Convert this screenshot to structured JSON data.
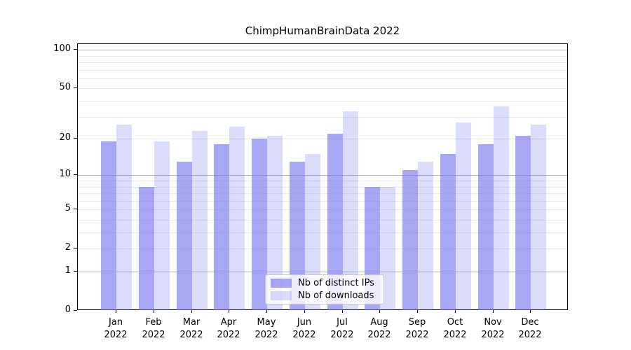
{
  "title": "ChimpHumanBrainData 2022",
  "colors": {
    "bar_ips": "rgba(120,120,240,0.65)",
    "bar_downloads": "rgba(120,120,240,0.26)",
    "bar_ips_hex_on_white": "#a9a9f3",
    "bar_downloads_hex_on_white": "#dcdcfa",
    "grid_major": "#b0b0b0",
    "grid_minor": "#e9e9e9",
    "spine": "#000000",
    "legend_border": "#c8c8c8"
  },
  "legend": {
    "position": "lower center",
    "items": [
      {
        "label": "Nb of distinct IPs"
      },
      {
        "label": "Nb of downloads"
      }
    ]
  },
  "chart_data": {
    "type": "bar",
    "title": "ChimpHumanBrainData 2022",
    "categories": [
      "Jan 2022",
      "Feb 2022",
      "Mar 2022",
      "Apr 2022",
      "May 2022",
      "Jun 2022",
      "Jul 2022",
      "Aug 2022",
      "Sep 2022",
      "Oct 2022",
      "Nov 2022",
      "Dec 2022"
    ],
    "series": [
      {
        "name": "Nb of distinct IPs",
        "values": [
          19,
          8,
          13,
          18,
          20,
          13,
          22,
          8,
          11,
          15,
          18,
          21
        ]
      },
      {
        "name": "Nb of downloads",
        "values": [
          26,
          19,
          23,
          25,
          21,
          15,
          33,
          8,
          13,
          27,
          36,
          26
        ]
      }
    ],
    "xlabel": "",
    "ylabel": "",
    "yscale": "log1p",
    "yticks": [
      0,
      1,
      2,
      5,
      10,
      20,
      50,
      100
    ],
    "ylim": [
      0,
      111
    ],
    "grid": true,
    "legend_position": "lower center"
  }
}
